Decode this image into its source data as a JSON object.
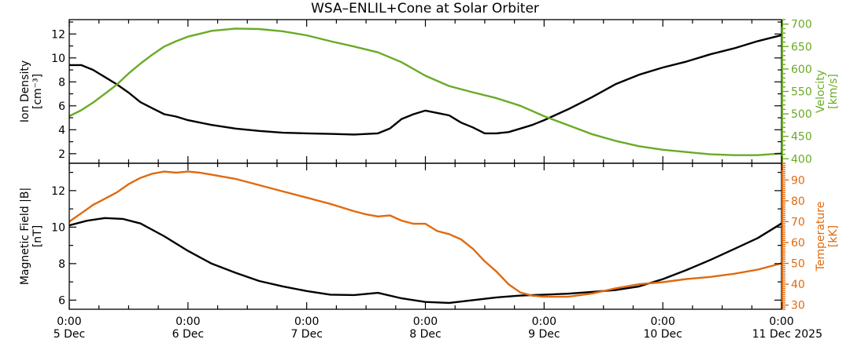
{
  "title": "WSA–ENLIL+Cone at Solar Orbiter",
  "x_axis": {
    "unit": "days since 5 Dec 0:00",
    "range": [
      0,
      6
    ],
    "ticks": [
      {
        "value": 0,
        "time": "0:00",
        "date": "5 Dec"
      },
      {
        "value": 1,
        "time": "0:00",
        "date": "6 Dec"
      },
      {
        "value": 2,
        "time": "0:00",
        "date": "7 Dec"
      },
      {
        "value": 3,
        "time": "0:00",
        "date": "8 Dec"
      },
      {
        "value": 4,
        "time": "0:00",
        "date": "9 Dec"
      },
      {
        "value": 5,
        "time": "0:00",
        "date": "10 Dec"
      },
      {
        "value": 6,
        "time": "0:00",
        "date": "11 Dec 2025"
      }
    ]
  },
  "colors": {
    "black": "#000000",
    "green": "#6aaa26",
    "orange": "#e06a10"
  },
  "chart_data": [
    {
      "type": "line",
      "panel": "top",
      "title": "WSA–ENLIL+Cone at Solar Orbiter",
      "left_axis": {
        "label_line1": "Ion Density",
        "label_line2": "[cm⁻³]",
        "ylim": [
          1.2,
          13.2
        ],
        "ticks": [
          "2",
          "4",
          "6",
          "8",
          "10",
          "12"
        ]
      },
      "right_axis": {
        "label_line1": "Velocity",
        "label_line2": "[km/s]",
        "ylim": [
          390,
          710
        ],
        "ticks": [
          "400",
          "450",
          "500",
          "550",
          "600",
          "650",
          "700"
        ]
      },
      "series": [
        {
          "name": "Ion Density",
          "axis": "left",
          "color": "#000000",
          "x": [
            0,
            0.1,
            0.2,
            0.3,
            0.4,
            0.5,
            0.6,
            0.7,
            0.8,
            0.9,
            1.0,
            1.2,
            1.4,
            1.6,
            1.8,
            2.0,
            2.2,
            2.4,
            2.6,
            2.7,
            2.8,
            2.9,
            3.0,
            3.1,
            3.2,
            3.3,
            3.4,
            3.5,
            3.6,
            3.7,
            3.8,
            3.9,
            4.0,
            4.2,
            4.4,
            4.6,
            4.8,
            5.0,
            5.2,
            5.4,
            5.6,
            5.8,
            6.0
          ],
          "values": [
            9.4,
            9.4,
            9.0,
            8.4,
            7.8,
            7.1,
            6.3,
            5.8,
            5.3,
            5.1,
            4.8,
            4.4,
            4.1,
            3.9,
            3.75,
            3.7,
            3.65,
            3.6,
            3.7,
            4.1,
            4.9,
            5.3,
            5.6,
            5.4,
            5.2,
            4.6,
            4.2,
            3.7,
            3.7,
            3.8,
            4.1,
            4.4,
            4.8,
            5.7,
            6.7,
            7.8,
            8.6,
            9.2,
            9.7,
            10.3,
            10.8,
            11.4,
            11.9
          ]
        },
        {
          "name": "Velocity",
          "axis": "right",
          "color": "#6aaa26",
          "x": [
            0,
            0.1,
            0.2,
            0.3,
            0.4,
            0.5,
            0.6,
            0.7,
            0.8,
            0.9,
            1.0,
            1.2,
            1.4,
            1.6,
            1.8,
            2.0,
            2.2,
            2.4,
            2.6,
            2.8,
            3.0,
            3.2,
            3.4,
            3.6,
            3.8,
            4.0,
            4.2,
            4.4,
            4.6,
            4.8,
            5.0,
            5.2,
            5.4,
            5.6,
            5.8,
            6.0
          ],
          "values": [
            495,
            508,
            525,
            545,
            565,
            590,
            612,
            632,
            650,
            662,
            672,
            685,
            690,
            689,
            684,
            675,
            662,
            650,
            637,
            615,
            585,
            562,
            548,
            535,
            518,
            495,
            475,
            455,
            440,
            428,
            420,
            415,
            410,
            408,
            408,
            412
          ]
        }
      ]
    },
    {
      "type": "line",
      "panel": "bottom",
      "title": "",
      "left_axis": {
        "label_line1": "Magnetic Field |B|",
        "label_line2": "[nT]",
        "ylim": [
          5.5,
          13.5
        ],
        "ticks": [
          "6",
          "8",
          "10",
          "12"
        ]
      },
      "right_axis": {
        "label_line1": "Temperature",
        "label_line2": "[kK]",
        "ylim": [
          28,
          98
        ],
        "ticks": [
          "30",
          "40",
          "50",
          "60",
          "70",
          "80",
          "90"
        ]
      },
      "series": [
        {
          "name": "Magnetic Field |B|",
          "axis": "left",
          "color": "#000000",
          "x": [
            0,
            0.15,
            0.3,
            0.45,
            0.6,
            0.8,
            1.0,
            1.2,
            1.4,
            1.6,
            1.8,
            2.0,
            2.2,
            2.4,
            2.6,
            2.8,
            3.0,
            3.2,
            3.4,
            3.6,
            3.8,
            4.0,
            4.2,
            4.4,
            4.6,
            4.8,
            5.0,
            5.2,
            5.4,
            5.6,
            5.8,
            6.0
          ],
          "values": [
            10.1,
            10.35,
            10.5,
            10.45,
            10.2,
            9.5,
            8.7,
            8.0,
            7.5,
            7.05,
            6.75,
            6.5,
            6.3,
            6.28,
            6.4,
            6.1,
            5.9,
            5.85,
            6.0,
            6.15,
            6.25,
            6.3,
            6.35,
            6.45,
            6.55,
            6.75,
            7.15,
            7.65,
            8.2,
            8.8,
            9.4,
            10.2
          ]
        },
        {
          "name": "Temperature",
          "axis": "right",
          "color": "#e06a10",
          "x": [
            0,
            0.1,
            0.2,
            0.3,
            0.4,
            0.5,
            0.6,
            0.7,
            0.8,
            0.9,
            1.0,
            1.1,
            1.2,
            1.4,
            1.6,
            1.8,
            2.0,
            2.2,
            2.4,
            2.5,
            2.6,
            2.7,
            2.8,
            2.9,
            3.0,
            3.1,
            3.2,
            3.3,
            3.4,
            3.5,
            3.6,
            3.7,
            3.8,
            3.9,
            4.0,
            4.2,
            4.4,
            4.6,
            4.8,
            5.0,
            5.2,
            5.4,
            5.6,
            5.8,
            6.0
          ],
          "values": [
            70,
            74,
            78,
            81,
            84,
            88,
            91,
            93,
            94,
            93.5,
            94,
            93.5,
            92.5,
            90.5,
            87.5,
            84.5,
            81.5,
            78.5,
            75,
            73.5,
            72.5,
            73,
            70.5,
            69,
            69,
            65.5,
            64,
            61.5,
            57,
            51,
            46,
            40,
            36,
            34.5,
            34,
            34,
            35.5,
            38,
            40,
            41,
            42.5,
            43.5,
            45,
            47,
            50
          ]
        }
      ]
    }
  ]
}
